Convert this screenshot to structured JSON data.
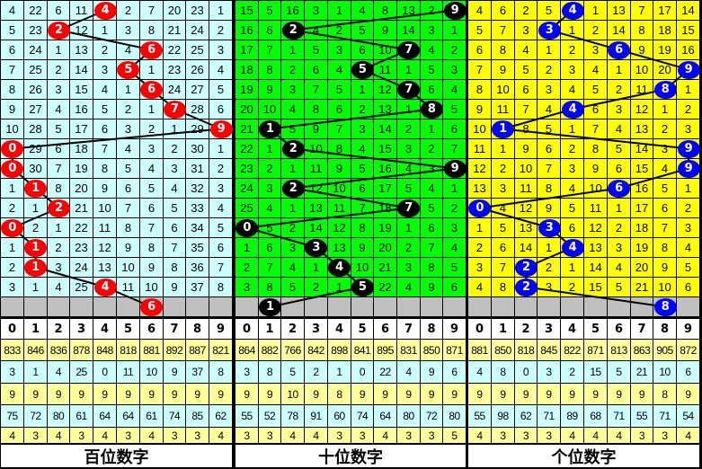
{
  "column_digits": [
    "0",
    "1",
    "2",
    "3",
    "4",
    "5",
    "6",
    "7",
    "8",
    "9"
  ],
  "colors": {
    "gray_row": "#c0c0c0",
    "stat_yellow": "#ffff99",
    "stat_cyan": "#ccffff",
    "header_bg": "#ffffff"
  },
  "panels": [
    {
      "label": "百位数字",
      "bg": "#ccffff",
      "ball_color": "#ff0000",
      "hits": [
        4,
        2,
        6,
        5,
        6,
        7,
        9,
        0,
        0,
        1,
        2,
        0,
        1,
        1,
        4,
        6
      ],
      "rows": [
        [
          4,
          22,
          6,
          11,
          4,
          2,
          7,
          20,
          23,
          1
        ],
        [
          5,
          23,
          2,
          12,
          1,
          3,
          8,
          21,
          24,
          2
        ],
        [
          6,
          24,
          1,
          13,
          2,
          4,
          6,
          22,
          25,
          3
        ],
        [
          7,
          25,
          2,
          14,
          3,
          5,
          1,
          23,
          26,
          4
        ],
        [
          8,
          26,
          3,
          15,
          4,
          1,
          6,
          24,
          27,
          5
        ],
        [
          9,
          27,
          4,
          16,
          5,
          2,
          1,
          7,
          28,
          6
        ],
        [
          10,
          28,
          5,
          17,
          6,
          3,
          2,
          1,
          29,
          9
        ],
        [
          0,
          29,
          6,
          18,
          7,
          4,
          3,
          2,
          30,
          1
        ],
        [
          0,
          30,
          7,
          19,
          8,
          5,
          4,
          3,
          31,
          2
        ],
        [
          1,
          1,
          8,
          20,
          9,
          6,
          5,
          4,
          32,
          3
        ],
        [
          2,
          1,
          2,
          21,
          10,
          7,
          6,
          5,
          33,
          4
        ],
        [
          0,
          2,
          1,
          22,
          11,
          8,
          7,
          6,
          34,
          5
        ],
        [
          1,
          1,
          2,
          23,
          12,
          9,
          8,
          7,
          35,
          6
        ],
        [
          2,
          1,
          3,
          24,
          13,
          10,
          9,
          8,
          36,
          7
        ],
        [
          3,
          1,
          4,
          25,
          4,
          11,
          10,
          9,
          37,
          8
        ]
      ],
      "stats": [
        [
          833,
          846,
          836,
          878,
          848,
          818,
          881,
          892,
          887,
          821
        ],
        [
          3,
          1,
          4,
          25,
          0,
          11,
          10,
          9,
          37,
          8
        ],
        [
          9,
          9,
          9,
          9,
          9,
          9,
          9,
          9,
          9,
          9
        ],
        [
          75,
          72,
          80,
          61,
          64,
          64,
          61,
          74,
          85,
          62
        ],
        [
          4,
          3,
          4,
          3,
          4,
          3,
          4,
          3,
          3,
          4
        ]
      ]
    },
    {
      "label": "十位数字",
      "bg": "#00ff00",
      "ball_color": "#000000",
      "hits": [
        9,
        2,
        7,
        5,
        7,
        8,
        1,
        2,
        9,
        2,
        7,
        0,
        3,
        4,
        5,
        1
      ],
      "rows": [
        [
          15,
          5,
          16,
          3,
          1,
          4,
          8,
          13,
          2,
          9
        ],
        [
          16,
          6,
          2,
          4,
          2,
          5,
          9,
          14,
          3,
          1
        ],
        [
          17,
          7,
          1,
          5,
          3,
          6,
          10,
          7,
          4,
          2
        ],
        [
          18,
          8,
          2,
          6,
          4,
          5,
          11,
          1,
          5,
          3
        ],
        [
          19,
          9,
          3,
          7,
          5,
          1,
          12,
          7,
          6,
          4
        ],
        [
          20,
          10,
          4,
          8,
          6,
          2,
          13,
          1,
          8,
          5
        ],
        [
          21,
          1,
          5,
          9,
          7,
          3,
          14,
          2,
          1,
          6
        ],
        [
          22,
          1,
          2,
          10,
          8,
          4,
          15,
          3,
          2,
          7
        ],
        [
          23,
          2,
          1,
          11,
          9,
          5,
          16,
          4,
          3,
          9
        ],
        [
          24,
          3,
          2,
          12,
          10,
          6,
          17,
          5,
          4,
          1
        ],
        [
          25,
          4,
          1,
          13,
          11,
          7,
          18,
          7,
          5,
          2
        ],
        [
          0,
          5,
          2,
          14,
          12,
          8,
          19,
          1,
          6,
          3
        ],
        [
          1,
          6,
          3,
          3,
          13,
          9,
          20,
          2,
          7,
          4
        ],
        [
          2,
          7,
          4,
          1,
          4,
          10,
          21,
          3,
          8,
          5
        ],
        [
          3,
          8,
          5,
          2,
          1,
          5,
          22,
          4,
          9,
          6
        ]
      ],
      "stats": [
        [
          864,
          882,
          766,
          842,
          898,
          841,
          895,
          831,
          850,
          871
        ],
        [
          3,
          8,
          5,
          2,
          1,
          0,
          22,
          4,
          9,
          6
        ],
        [
          9,
          9,
          10,
          9,
          8,
          9,
          9,
          9,
          9,
          9
        ],
        [
          55,
          52,
          78,
          91,
          60,
          74,
          64,
          80,
          72,
          80
        ],
        [
          3,
          3,
          4,
          4,
          3,
          3,
          4,
          3,
          3,
          5
        ]
      ]
    },
    {
      "label": "个位数字",
      "bg": "#ffff00",
      "ball_color": "#0000ff",
      "hits": [
        4,
        3,
        6,
        9,
        8,
        4,
        1,
        9,
        9,
        6,
        0,
        3,
        4,
        2,
        2,
        8
      ],
      "rows": [
        [
          4,
          6,
          2,
          5,
          4,
          1,
          13,
          7,
          17,
          14
        ],
        [
          5,
          7,
          3,
          3,
          1,
          2,
          14,
          8,
          18,
          15
        ],
        [
          6,
          8,
          4,
          1,
          2,
          3,
          6,
          9,
          19,
          16
        ],
        [
          7,
          9,
          5,
          2,
          3,
          4,
          1,
          10,
          20,
          9
        ],
        [
          8,
          10,
          6,
          3,
          4,
          5,
          2,
          11,
          8,
          1
        ],
        [
          9,
          11,
          7,
          4,
          4,
          6,
          3,
          12,
          1,
          2
        ],
        [
          10,
          1,
          8,
          5,
          1,
          7,
          4,
          13,
          2,
          3
        ],
        [
          11,
          1,
          9,
          6,
          2,
          8,
          5,
          14,
          3,
          9
        ],
        [
          12,
          2,
          10,
          7,
          3,
          9,
          6,
          15,
          4,
          9
        ],
        [
          13,
          3,
          11,
          8,
          4,
          10,
          6,
          16,
          5,
          1
        ],
        [
          0,
          4,
          12,
          9,
          5,
          11,
          1,
          17,
          6,
          2
        ],
        [
          1,
          5,
          13,
          3,
          6,
          12,
          2,
          18,
          7,
          3
        ],
        [
          2,
          6,
          14,
          1,
          4,
          13,
          3,
          19,
          8,
          4
        ],
        [
          3,
          7,
          2,
          2,
          1,
          14,
          4,
          20,
          9,
          5
        ],
        [
          4,
          8,
          2,
          3,
          2,
          15,
          5,
          21,
          10,
          6
        ]
      ],
      "stats": [
        [
          881,
          850,
          818,
          845,
          822,
          871,
          813,
          863,
          905,
          872
        ],
        [
          4,
          8,
          0,
          3,
          2,
          15,
          5,
          21,
          10,
          6
        ],
        [
          9,
          9,
          9,
          9,
          9,
          9,
          9,
          9,
          8,
          9
        ],
        [
          55,
          98,
          62,
          71,
          89,
          68,
          71,
          55,
          71,
          54
        ],
        [
          4,
          3,
          3,
          3,
          4,
          4,
          4,
          3,
          3,
          4
        ]
      ]
    }
  ]
}
